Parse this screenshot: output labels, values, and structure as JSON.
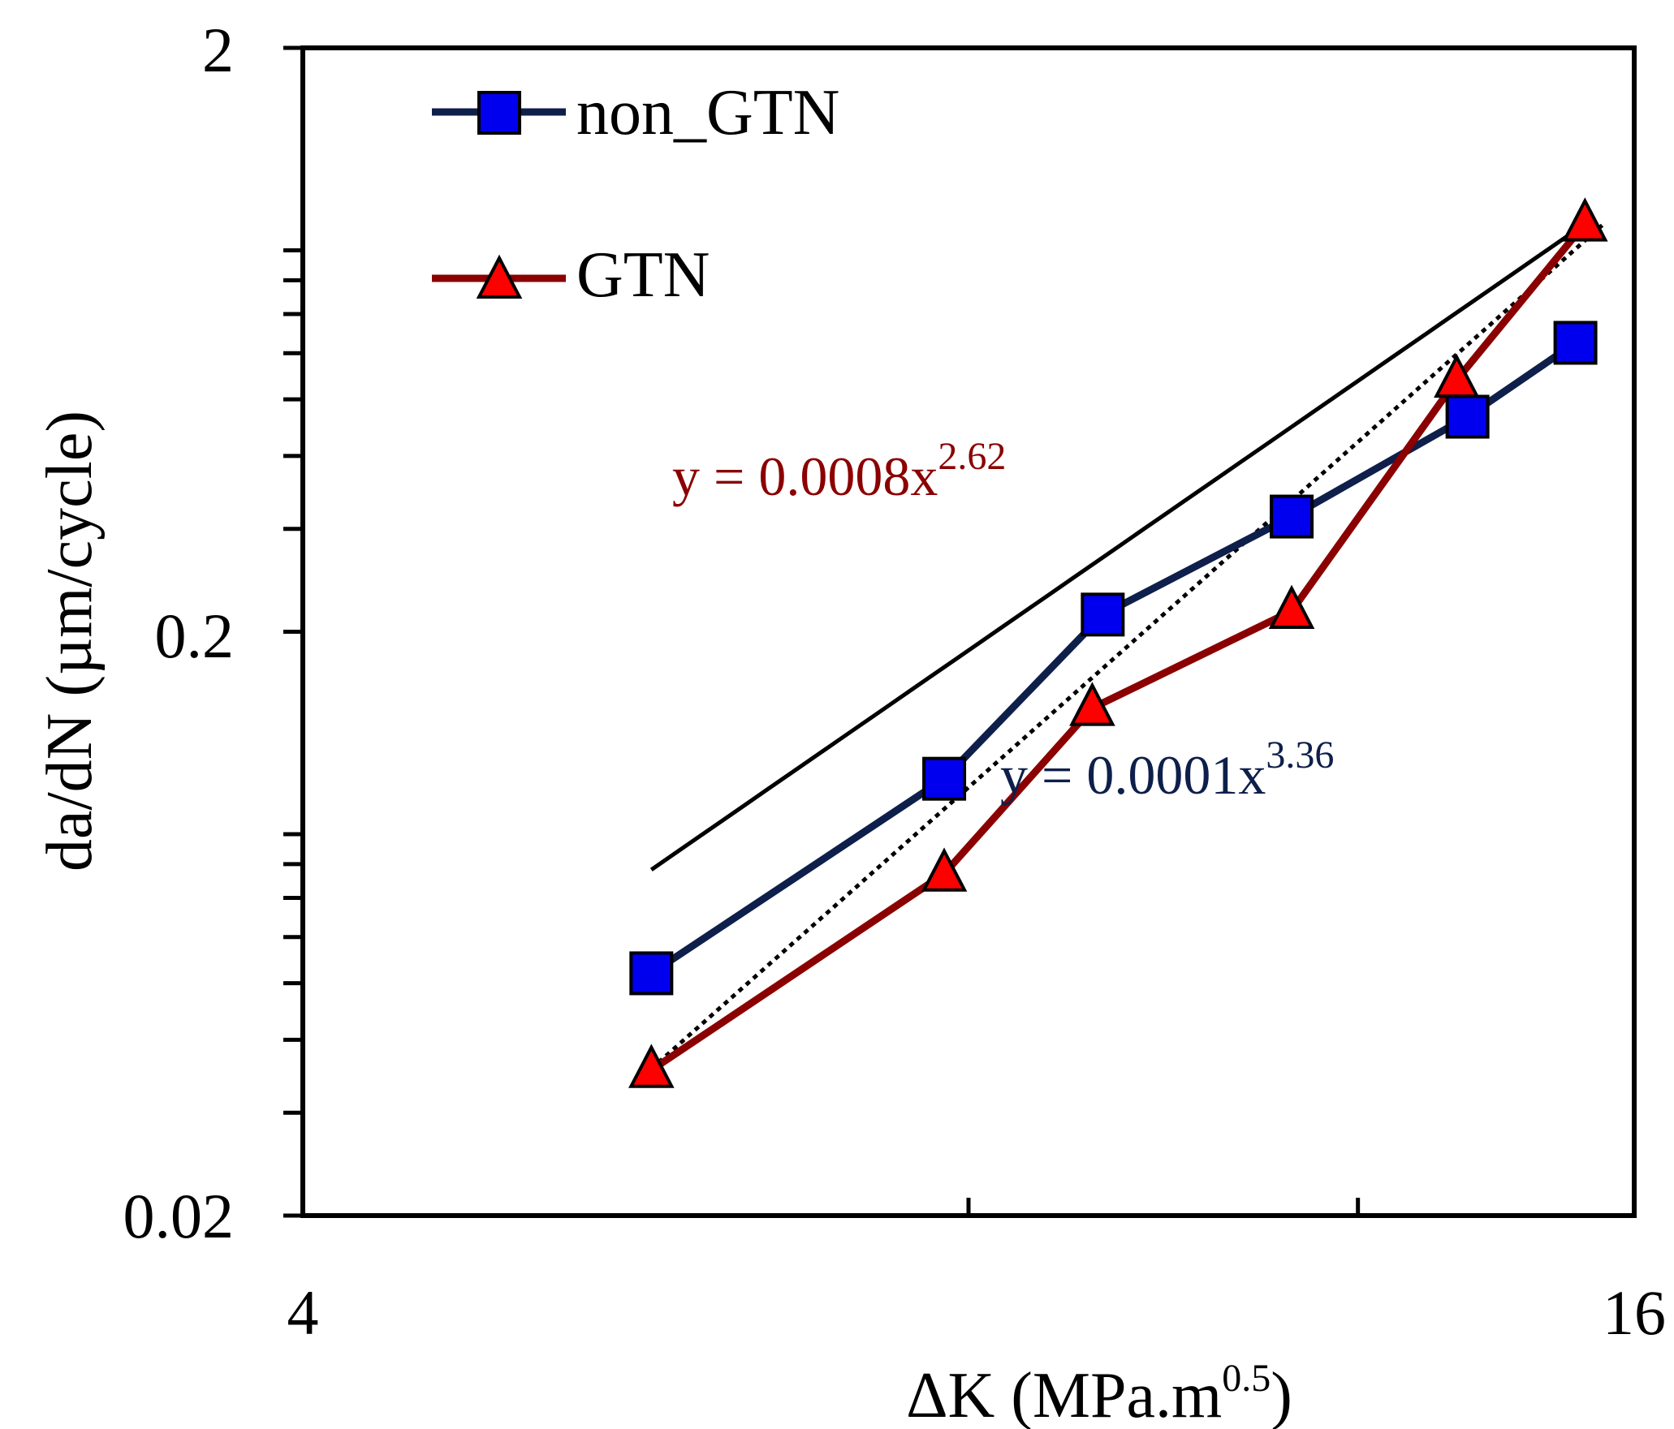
{
  "chart_data": {
    "type": "line",
    "title": "",
    "xlabel": "ΔK (MPa.m",
    "xlabel_sup": "0.5",
    "xlabel_end": ")",
    "ylabel": "da/dN (µm/cycle)",
    "xscale": "log",
    "yscale": "log",
    "xlim": [
      4,
      16
    ],
    "ylim": [
      0.02,
      2
    ],
    "x_tick_labels": [
      "4",
      "16"
    ],
    "y_tick_labels": [
      "2",
      "0.2",
      "0.02"
    ],
    "legend_position": "top-left",
    "grid": false,
    "series": [
      {
        "name": "non_GTN",
        "marker": "square",
        "line_color": "#0d1f4a",
        "marker_color": "#0000ee",
        "x": [
          5.75,
          7.8,
          9.2,
          11.2,
          13.45,
          15.05
        ],
        "y": [
          0.052,
          0.112,
          0.214,
          0.315,
          0.467,
          0.625
        ],
        "trend": {
          "type": "power",
          "a": 0.0001,
          "b": 3.36,
          "style": "dotted",
          "x_range": [
            5.75,
            15.5
          ],
          "equation": "y = 0.0001x",
          "exponent": "3.36",
          "equation_color": "#0d1f4a"
        }
      },
      {
        "name": "GTN",
        "marker": "triangle",
        "line_color": "#8b0000",
        "marker_color": "#ff0000",
        "x": [
          5.75,
          7.8,
          9.1,
          11.2,
          13.3,
          15.2
        ],
        "y": [
          0.0355,
          0.077,
          0.148,
          0.217,
          0.54,
          1.0
        ],
        "trend": {
          "type": "power",
          "a": 0.0008,
          "b": 2.62,
          "style": "solid",
          "x_range": [
            5.75,
            15.3
          ],
          "equation": "y = 0.0008x",
          "exponent": "2.62",
          "equation_color": "#8b0000"
        }
      }
    ]
  }
}
